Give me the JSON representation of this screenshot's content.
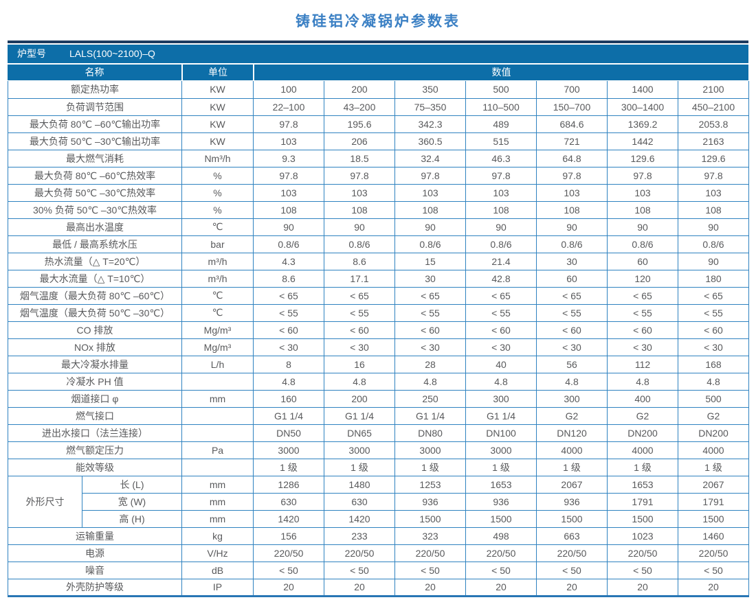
{
  "title": "铸硅铝冷凝锅炉参数表",
  "model": {
    "label": "炉型号",
    "value": "LALS(100~2100)–Q"
  },
  "columns": {
    "name": "名称",
    "unit": "单位",
    "value": "数值"
  },
  "colors": {
    "header_blue": "#0d6ea8",
    "navy_strip": "#1c3b5f",
    "grid_border": "#2e82c0",
    "title_blue": "#3b80c4",
    "cell_text": "#58595b"
  },
  "rows": [
    {
      "label": "额定热功率",
      "unit": "KW",
      "values": [
        "100",
        "200",
        "350",
        "500",
        "700",
        "1400",
        "2100"
      ]
    },
    {
      "label": "负荷调节范围",
      "unit": "KW",
      "values": [
        "22–100",
        "43–200",
        "75–350",
        "110–500",
        "150–700",
        "300–1400",
        "450–2100"
      ]
    },
    {
      "label": "最大负荷 80℃ –60℃输出功率",
      "unit": "KW",
      "values": [
        "97.8",
        "195.6",
        "342.3",
        "489",
        "684.6",
        "1369.2",
        "2053.8"
      ]
    },
    {
      "label": "最大负荷 50℃ –30℃输出功率",
      "unit": "KW",
      "values": [
        "103",
        "206",
        "360.5",
        "515",
        "721",
        "1442",
        "2163"
      ]
    },
    {
      "label": "最大燃气消耗",
      "unit": "Nm³/h",
      "values": [
        "9.3",
        "18.5",
        "32.4",
        "46.3",
        "64.8",
        "129.6",
        "129.6"
      ]
    },
    {
      "label": "最大负荷 80℃ –60℃热效率",
      "unit": "%",
      "values": [
        "97.8",
        "97.8",
        "97.8",
        "97.8",
        "97.8",
        "97.8",
        "97.8"
      ]
    },
    {
      "label": "最大负荷 50℃ –30℃热效率",
      "unit": "%",
      "values": [
        "103",
        "103",
        "103",
        "103",
        "103",
        "103",
        "103"
      ]
    },
    {
      "label": "30% 负荷 50℃ –30℃热效率",
      "unit": "%",
      "values": [
        "108",
        "108",
        "108",
        "108",
        "108",
        "108",
        "108"
      ]
    },
    {
      "label": "最高出水温度",
      "unit": "℃",
      "values": [
        "90",
        "90",
        "90",
        "90",
        "90",
        "90",
        "90"
      ]
    },
    {
      "label": "最低 / 最高系统水压",
      "unit": "bar",
      "values": [
        "0.8/6",
        "0.8/6",
        "0.8/6",
        "0.8/6",
        "0.8/6",
        "0.8/6",
        "0.8/6"
      ]
    },
    {
      "label": "热水流量（△ T=20℃）",
      "unit": "m³/h",
      "values": [
        "4.3",
        "8.6",
        "15",
        "21.4",
        "30",
        "60",
        "90"
      ]
    },
    {
      "label": "最大水流量（△ T=10℃）",
      "unit": "m³/h",
      "values": [
        "8.6",
        "17.1",
        "30",
        "42.8",
        "60",
        "120",
        "180"
      ]
    },
    {
      "label": "烟气温度（最大负荷 80℃ –60℃）",
      "unit": "℃",
      "values": [
        "< 65",
        "< 65",
        "< 65",
        "< 65",
        "< 65",
        "< 65",
        "< 65"
      ]
    },
    {
      "label": "烟气温度（最大负荷 50℃ –30℃）",
      "unit": "℃",
      "values": [
        "< 55",
        "< 55",
        "< 55",
        "< 55",
        "< 55",
        "< 55",
        "< 55"
      ]
    },
    {
      "label": "CO 排放",
      "unit": "Mg/m³",
      "values": [
        "< 60",
        "< 60",
        "< 60",
        "< 60",
        "< 60",
        "< 60",
        "< 60"
      ]
    },
    {
      "label": "NOx 排放",
      "unit": "Mg/m³",
      "values": [
        "< 30",
        "< 30",
        "< 30",
        "< 30",
        "< 30",
        "< 30",
        "< 30"
      ]
    },
    {
      "label": "最大冷凝水排量",
      "unit": "L/h",
      "values": [
        "8",
        "16",
        "28",
        "40",
        "56",
        "112",
        "168"
      ]
    },
    {
      "label": "冷凝水 PH 值",
      "unit": "",
      "values": [
        "4.8",
        "4.8",
        "4.8",
        "4.8",
        "4.8",
        "4.8",
        "4.8"
      ]
    },
    {
      "label": "烟道接口 φ",
      "unit": "mm",
      "values": [
        "160",
        "200",
        "250",
        "300",
        "300",
        "400",
        "500"
      ]
    },
    {
      "label": "燃气接口",
      "unit": "",
      "values": [
        "G1 1/4",
        "G1 1/4",
        "G1 1/4",
        "G1 1/4",
        "G2",
        "G2",
        "G2"
      ]
    },
    {
      "label": "进出水接口（法兰连接）",
      "unit": "",
      "values": [
        "DN50",
        "DN65",
        "DN80",
        "DN100",
        "DN120",
        "DN200",
        "DN200"
      ]
    },
    {
      "label": "燃气额定压力",
      "unit": "Pa",
      "values": [
        "3000",
        "3000",
        "3000",
        "3000",
        "4000",
        "4000",
        "4000"
      ]
    },
    {
      "label": "能效等级",
      "unit": "",
      "values": [
        "1 级",
        "1 级",
        "1 级",
        "1 级",
        "1 级",
        "1 级",
        "1 级"
      ]
    },
    {
      "group": "外形尺寸",
      "sub": [
        {
          "label": "长 (L)",
          "unit": "mm",
          "values": [
            "1286",
            "1480",
            "1253",
            "1653",
            "2067",
            "1653",
            "2067"
          ]
        },
        {
          "label": "宽 (W)",
          "unit": "mm",
          "values": [
            "630",
            "630",
            "936",
            "936",
            "936",
            "1791",
            "1791"
          ]
        },
        {
          "label": "高 (H)",
          "unit": "mm",
          "values": [
            "1420",
            "1420",
            "1500",
            "1500",
            "1500",
            "1500",
            "1500"
          ]
        }
      ]
    },
    {
      "label": "运输重量",
      "unit": "kg",
      "values": [
        "156",
        "233",
        "323",
        "498",
        "663",
        "1023",
        "1460"
      ]
    },
    {
      "label": "电源",
      "unit": "V/Hz",
      "values": [
        "220/50",
        "220/50",
        "220/50",
        "220/50",
        "220/50",
        "220/50",
        "220/50"
      ]
    },
    {
      "label": "噪音",
      "unit": "dB",
      "values": [
        "< 50",
        "< 50",
        "< 50",
        "< 50",
        "< 50",
        "< 50",
        "< 50"
      ]
    },
    {
      "label": "外壳防护等级",
      "unit": "IP",
      "values": [
        "20",
        "20",
        "20",
        "20",
        "20",
        "20",
        "20"
      ]
    }
  ]
}
